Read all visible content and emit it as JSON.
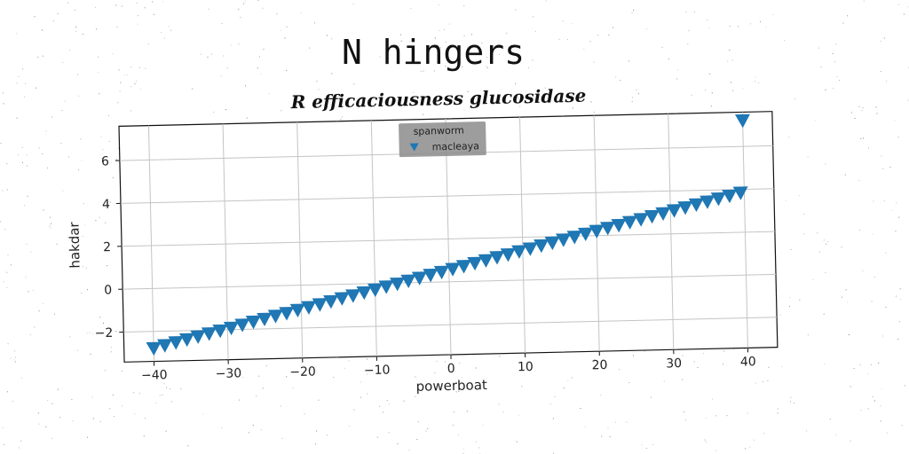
{
  "title": "N hingers",
  "chart_data": {
    "type": "scatter",
    "title": "R efficaciousness glucosidase",
    "xlabel": "powerboat",
    "ylabel": "hakdar",
    "xlim": [
      -44,
      44
    ],
    "ylim": [
      -3.4,
      7.6
    ],
    "xticks": [
      -40,
      -30,
      -20,
      -10,
      0,
      10,
      20,
      30,
      40
    ],
    "yticks": [
      -2,
      0,
      2,
      4,
      6
    ],
    "grid": true,
    "legend": {
      "title": "spanworm",
      "position": "top-center"
    },
    "series": [
      {
        "name": "macleaya",
        "marker": "triangle-down",
        "color": "#1f77b4",
        "x": [
          -40,
          -38.5,
          -37,
          -35.5,
          -34,
          -32.5,
          -31,
          -29.5,
          -28,
          -26.5,
          -25,
          -23.5,
          -22,
          -20.5,
          -19,
          -17.5,
          -16,
          -14.5,
          -13,
          -11.5,
          -10,
          -8.5,
          -7,
          -5.5,
          -4,
          -2.5,
          -1,
          0.5,
          2,
          3.5,
          5,
          6.5,
          8,
          9.5,
          11,
          12.5,
          14,
          15.5,
          17,
          18.5,
          20,
          21.5,
          23,
          24.5,
          26,
          27.5,
          29,
          30.5,
          32,
          33.5,
          35,
          36.5,
          38,
          39.5,
          40
        ],
        "y": [
          -2.8,
          -2.67,
          -2.55,
          -2.42,
          -2.3,
          -2.17,
          -2.05,
          -1.93,
          -1.8,
          -1.67,
          -1.55,
          -1.42,
          -1.3,
          -1.17,
          -1.05,
          -0.93,
          -0.8,
          -0.67,
          -0.55,
          -0.42,
          -0.3,
          -0.17,
          -0.05,
          0.08,
          0.2,
          0.33,
          0.45,
          0.58,
          0.7,
          0.83,
          0.95,
          1.08,
          1.2,
          1.33,
          1.45,
          1.58,
          1.7,
          1.83,
          1.95,
          2.08,
          2.2,
          2.33,
          2.45,
          2.58,
          2.7,
          2.83,
          2.95,
          3.08,
          3.2,
          3.33,
          3.45,
          3.58,
          3.7,
          3.83,
          7.2
        ]
      }
    ]
  }
}
